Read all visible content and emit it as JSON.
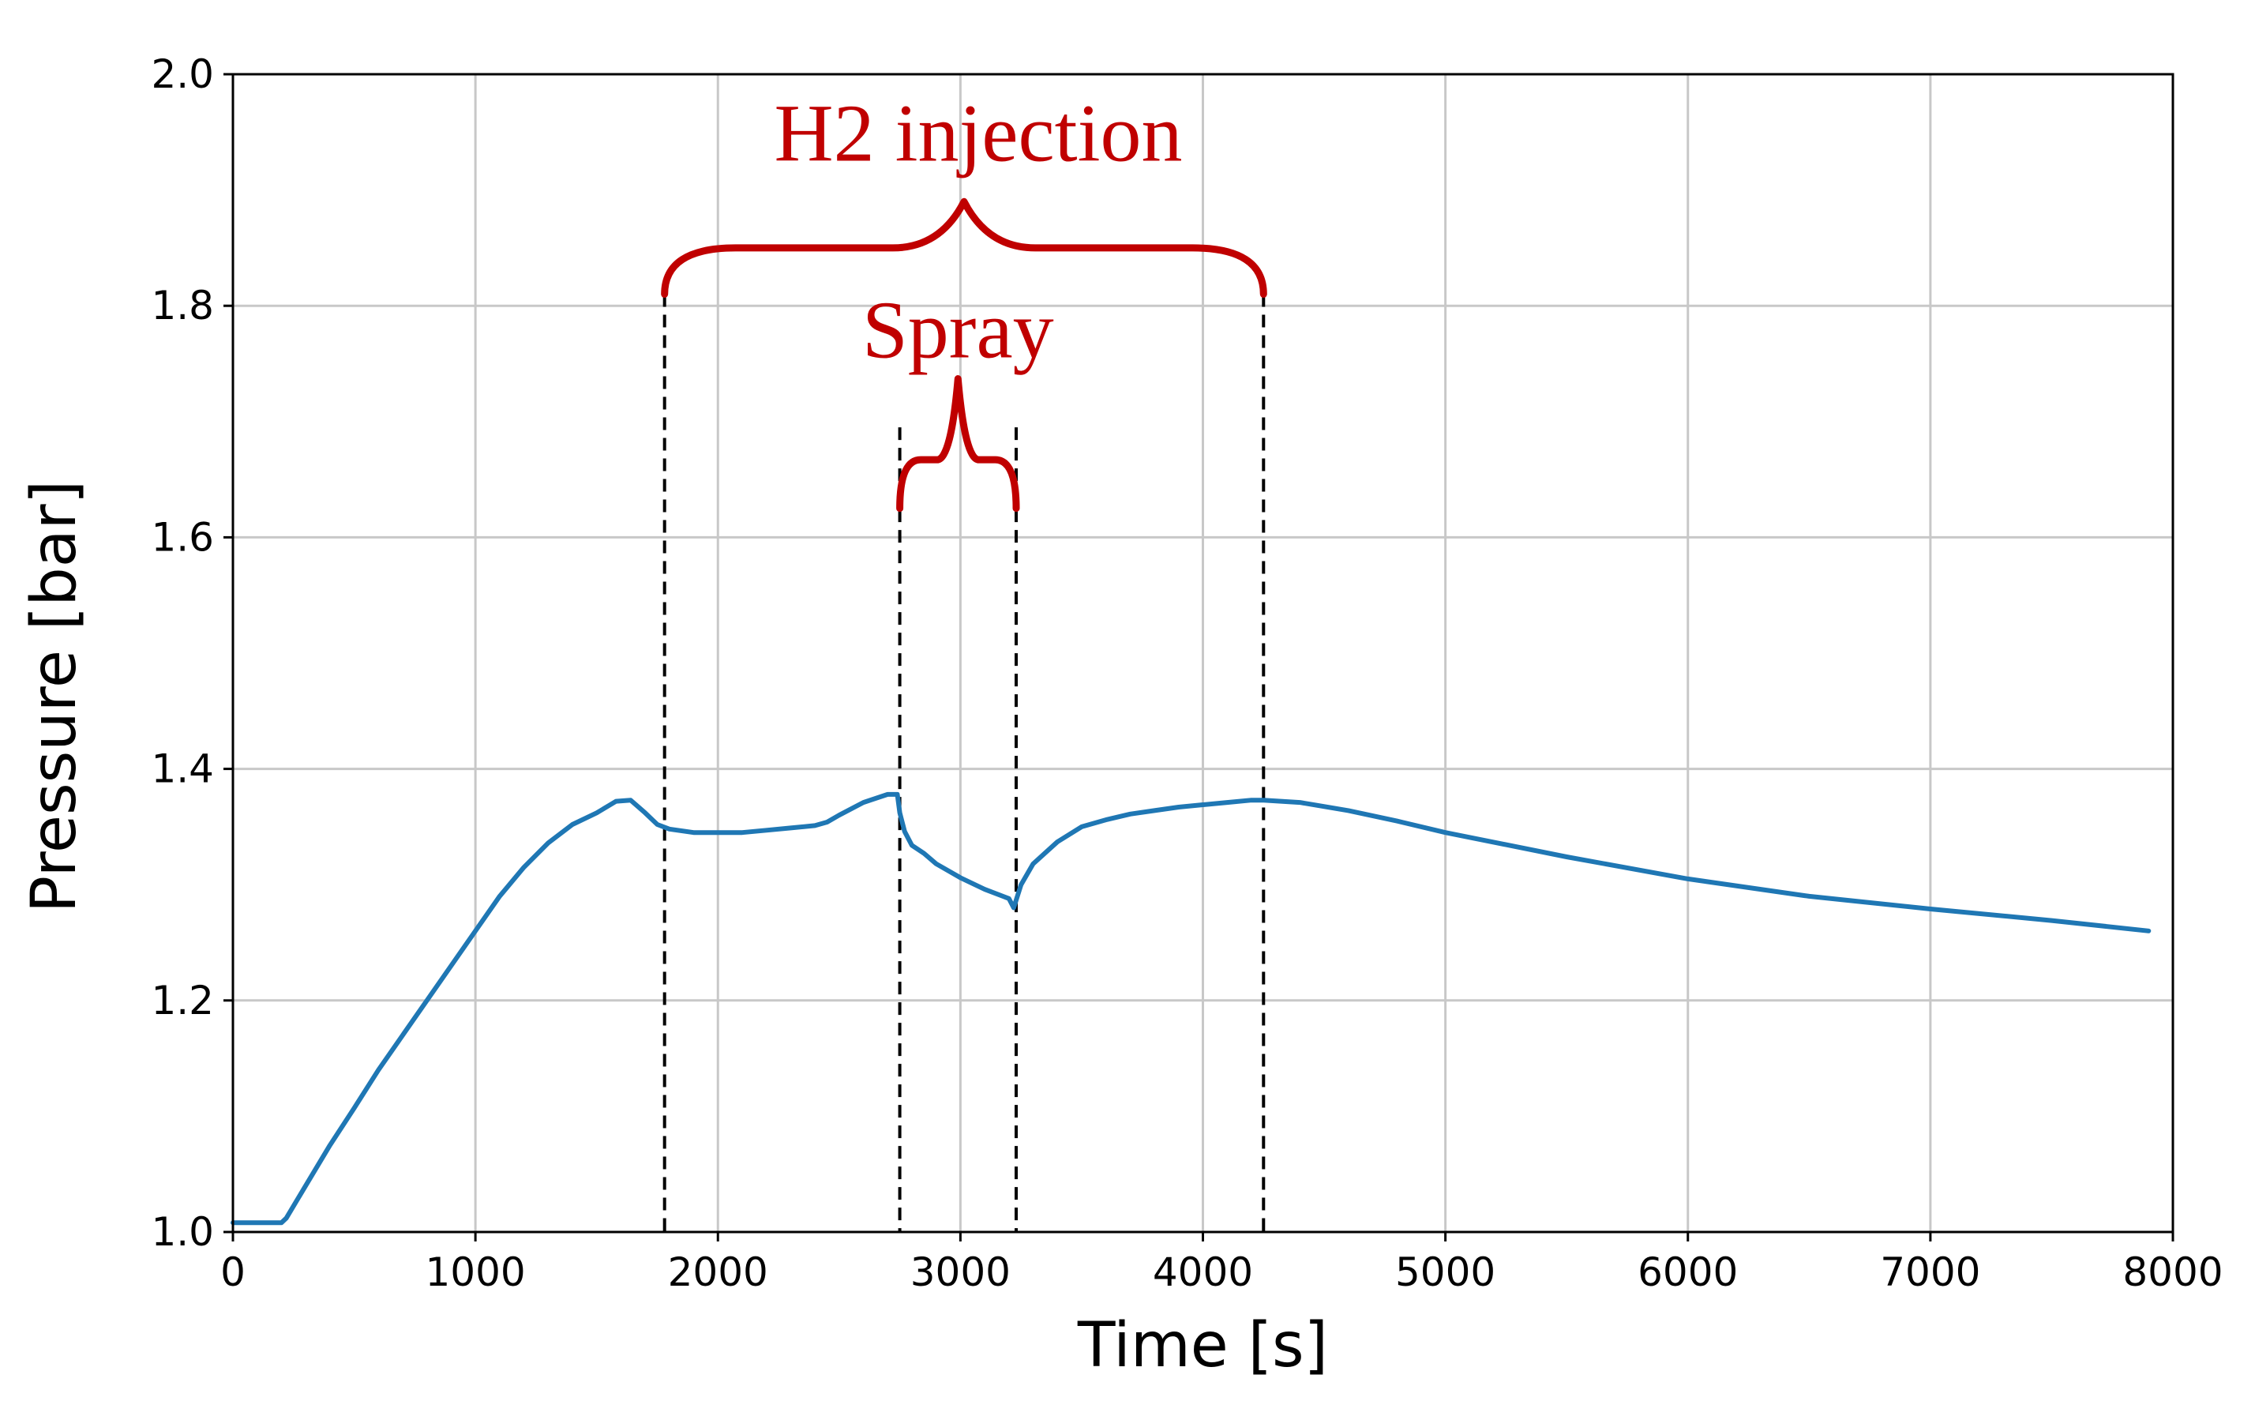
{
  "chart_data": {
    "type": "line",
    "title": "",
    "xlabel": "Time [s]",
    "ylabel": "Pressure [bar]",
    "xlim": [
      0,
      8000
    ],
    "ylim": [
      1.0,
      2.0
    ],
    "grid": true,
    "xticks": [
      0,
      1000,
      2000,
      3000,
      4000,
      5000,
      6000,
      7000,
      8000
    ],
    "xtick_labels": [
      "0",
      "1000",
      "2000",
      "3000",
      "4000",
      "5000",
      "6000",
      "7000",
      "8000"
    ],
    "yticks": [
      1.0,
      1.2,
      1.4,
      1.6,
      1.8,
      2.0
    ],
    "ytick_labels": [
      "1.0",
      "1.2",
      "1.4",
      "1.6",
      "1.8",
      "2.0"
    ],
    "series": [
      {
        "name": "Pressure",
        "color": "#1f77b4",
        "x": [
          0,
          100,
          200,
          220,
          300,
          400,
          500,
          600,
          700,
          800,
          900,
          1000,
          1100,
          1200,
          1300,
          1400,
          1500,
          1580,
          1640,
          1700,
          1750,
          1800,
          1900,
          2000,
          2100,
          2200,
          2300,
          2400,
          2450,
          2500,
          2600,
          2700,
          2740,
          2750,
          2770,
          2800,
          2850,
          2900,
          3000,
          3100,
          3200,
          3220,
          3250,
          3300,
          3400,
          3500,
          3600,
          3700,
          3800,
          3900,
          4000,
          4100,
          4200,
          4250,
          4400,
          4600,
          4800,
          5000,
          5500,
          6000,
          6500,
          7000,
          7500,
          7900
        ],
        "values": [
          1.008,
          1.008,
          1.008,
          1.012,
          1.04,
          1.075,
          1.107,
          1.14,
          1.17,
          1.2,
          1.23,
          1.26,
          1.29,
          1.315,
          1.336,
          1.352,
          1.362,
          1.372,
          1.373,
          1.362,
          1.352,
          1.348,
          1.345,
          1.345,
          1.345,
          1.347,
          1.349,
          1.351,
          1.354,
          1.36,
          1.371,
          1.378,
          1.378,
          1.362,
          1.346,
          1.334,
          1.327,
          1.318,
          1.306,
          1.296,
          1.288,
          1.28,
          1.3,
          1.318,
          1.337,
          1.35,
          1.356,
          1.361,
          1.364,
          1.367,
          1.369,
          1.371,
          1.373,
          1.373,
          1.371,
          1.364,
          1.355,
          1.345,
          1.324,
          1.305,
          1.29,
          1.279,
          1.269,
          1.26
        ]
      }
    ],
    "annotations": [
      {
        "text": "H2 injection",
        "color": "#c00000",
        "x_start": 1780,
        "x_end": 4250,
        "brace_y_base": 1.81,
        "brace_y_mid": 1.85,
        "brace_y_tip": 1.89,
        "label_y": 1.95
      },
      {
        "text": "Spray",
        "color": "#c00000",
        "x_start": 2750,
        "x_end": 3230,
        "brace_y_base": 1.625,
        "brace_y_mid": 1.667,
        "brace_y_tip": 1.737,
        "label_y": 1.78
      }
    ],
    "markers": [
      {
        "x": 1780,
        "y_top": 1.81,
        "style": "dashed"
      },
      {
        "x": 2750,
        "y_top": 1.695,
        "style": "dashed"
      },
      {
        "x": 3230,
        "y_top": 1.695,
        "style": "dashed"
      },
      {
        "x": 4250,
        "y_top": 1.81,
        "style": "dashed"
      }
    ],
    "colors": {
      "line": "#1f77b4",
      "annotation": "#c00000",
      "grid": "#c8c8c8",
      "axis": "#000000"
    }
  }
}
